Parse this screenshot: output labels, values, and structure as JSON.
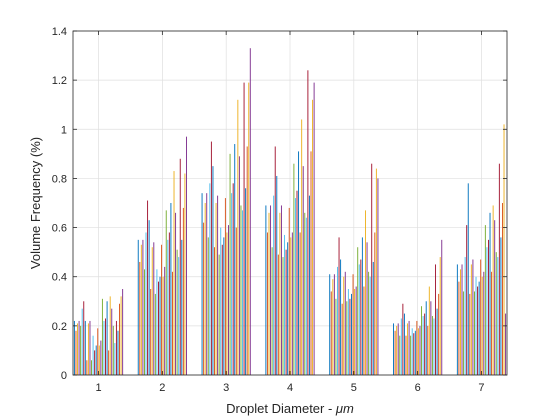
{
  "chart_data": {
    "type": "bar",
    "xlabel": "Droplet Diameter - μm",
    "xlabel_prefix": "Droplet Diameter - ",
    "xlabel_unit": "μm",
    "ylabel": "Volume Frequency (%)",
    "ylim": [
      0,
      1.4
    ],
    "yticks": [
      0,
      0.2,
      0.4,
      0.6,
      0.8,
      1,
      1.2,
      1.4
    ],
    "ytick_labels": [
      "0",
      "0.2",
      "0.4",
      "0.6",
      "0.8",
      "1",
      "1.2",
      "1.4"
    ],
    "xlim": [
      0.6,
      7.4
    ],
    "categories": [
      "1",
      "2",
      "3",
      "4",
      "5",
      "6",
      "7"
    ],
    "grid": true,
    "series_colors": [
      "#0072BD",
      "#D95319",
      "#EDB120",
      "#7E2F8E",
      "#77AC30",
      "#4DBEEE",
      "#A2142F"
    ],
    "values": [
      [
        0.22,
        0.18,
        0.21,
        0.22,
        0.2,
        0.27,
        0.3,
        0.22,
        0.06,
        0.21,
        0.22,
        0.06,
        0.16,
        0.1,
        0.12,
        0.19,
        0.12,
        0.14,
        0.31,
        0.22,
        0.23,
        0.3,
        0.1,
        0.32,
        0.27,
        0.2,
        0.13,
        0.22,
        0.18,
        0.29,
        0.32,
        0.35
      ],
      [
        0.55,
        0.46,
        0.53,
        0.55,
        0.43,
        0.58,
        0.71,
        0.63,
        0.35,
        0.52,
        0.54,
        0.33,
        0.43,
        0.38,
        0.4,
        0.53,
        0.4,
        0.44,
        0.67,
        0.55,
        0.58,
        0.7,
        0.42,
        0.83,
        0.66,
        0.51,
        0.48,
        0.88,
        0.55,
        0.68,
        0.82,
        0.97
      ],
      [
        0.74,
        0.62,
        0.7,
        0.74,
        0.56,
        0.78,
        0.95,
        0.85,
        0.52,
        0.7,
        0.73,
        0.49,
        0.6,
        0.53,
        0.56,
        0.72,
        0.58,
        0.61,
        0.9,
        0.74,
        0.78,
        0.94,
        0.6,
        1.12,
        0.89,
        0.69,
        0.67,
        1.19,
        0.76,
        0.93,
        1.19,
        1.33
      ],
      [
        0.69,
        0.58,
        0.66,
        0.69,
        0.52,
        0.73,
        0.93,
        0.81,
        0.49,
        0.66,
        0.69,
        0.48,
        0.57,
        0.51,
        0.54,
        0.68,
        0.56,
        0.58,
        0.86,
        0.72,
        0.75,
        0.91,
        0.58,
        1.04,
        0.85,
        0.66,
        0.64,
        1.24,
        0.73,
        0.91,
        1.12,
        1.19
      ],
      [
        0.41,
        0.34,
        0.39,
        0.41,
        0.31,
        0.44,
        0.56,
        0.47,
        0.29,
        0.4,
        0.42,
        0.3,
        0.35,
        0.31,
        0.33,
        0.41,
        0.35,
        0.36,
        0.52,
        0.45,
        0.47,
        0.56,
        0.36,
        0.67,
        0.54,
        0.42,
        0.4,
        0.86,
        0.46,
        0.58,
        0.84,
        0.8
      ],
      [
        0.21,
        0.18,
        0.2,
        0.21,
        0.16,
        0.23,
        0.29,
        0.25,
        0.16,
        0.21,
        0.22,
        0.16,
        0.19,
        0.17,
        0.18,
        0.22,
        0.19,
        0.2,
        0.28,
        0.24,
        0.25,
        0.3,
        0.2,
        0.36,
        0.3,
        0.24,
        0.23,
        0.45,
        0.27,
        0.33,
        0.48,
        0.55
      ],
      [
        0.45,
        0.38,
        0.43,
        0.45,
        0.34,
        0.48,
        0.61,
        0.78,
        0.33,
        0.45,
        0.47,
        0.34,
        0.4,
        0.36,
        0.38,
        0.47,
        0.4,
        0.42,
        0.61,
        0.52,
        0.55,
        0.66,
        0.42,
        0.69,
        0.63,
        0.5,
        0.48,
        0.86,
        0.56,
        0.7,
        1.02,
        0.25
      ]
    ]
  }
}
